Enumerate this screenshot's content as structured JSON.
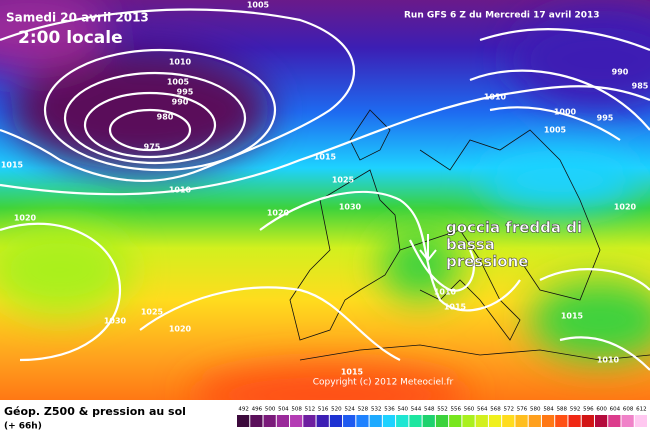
{
  "header": {
    "date": "Samedi 20 avril 2013",
    "time": "2:00 locale",
    "run": "Run GFS 6 Z du Mercredi 17 avril 2013"
  },
  "annotation": {
    "lines": [
      "goccia fredda di",
      "bassa",
      "pressione"
    ]
  },
  "copyright": "Copyright (c) 2012 Meteociel.fr",
  "footer": {
    "title": "Géop. Z500 & pression au sol",
    "lead": "(+ 66h)"
  },
  "isobar_labels": [
    1005,
    1010,
    1005,
    995,
    990,
    980,
    975,
    1010,
    1015,
    1015,
    1025,
    1030,
    1020,
    1010,
    1000,
    1005,
    995,
    990,
    985,
    1020,
    1010,
    1015,
    1030,
    1025,
    1020,
    1015,
    1015,
    1010,
    1020
  ],
  "scale": {
    "labels": [
      492,
      496,
      500,
      504,
      508,
      512,
      516,
      520,
      524,
      528,
      532,
      536,
      540,
      544,
      548,
      552,
      556,
      560,
      564,
      568,
      572,
      576,
      580,
      584,
      588,
      592,
      596,
      600,
      604,
      608,
      612
    ],
    "colors": [
      "#3c0a3c",
      "#5a0f5a",
      "#7a1a7a",
      "#9a2a9a",
      "#b43cb4",
      "#6e1ea0",
      "#3c1eb4",
      "#1e32d2",
      "#1e5af0",
      "#1e82ff",
      "#1eaaff",
      "#1ed2ff",
      "#1ee6d2",
      "#1ee6a0",
      "#1ed26e",
      "#3cd23c",
      "#78e61e",
      "#aaf01e",
      "#d2f01e",
      "#f0f01e",
      "#ffdc1e",
      "#ffbe1e",
      "#ffa01e",
      "#ff7814",
      "#ff5014",
      "#f02814",
      "#d21414",
      "#b40a3c",
      "#dc3c8c",
      "#f082c8",
      "#ffc8f0"
    ]
  }
}
